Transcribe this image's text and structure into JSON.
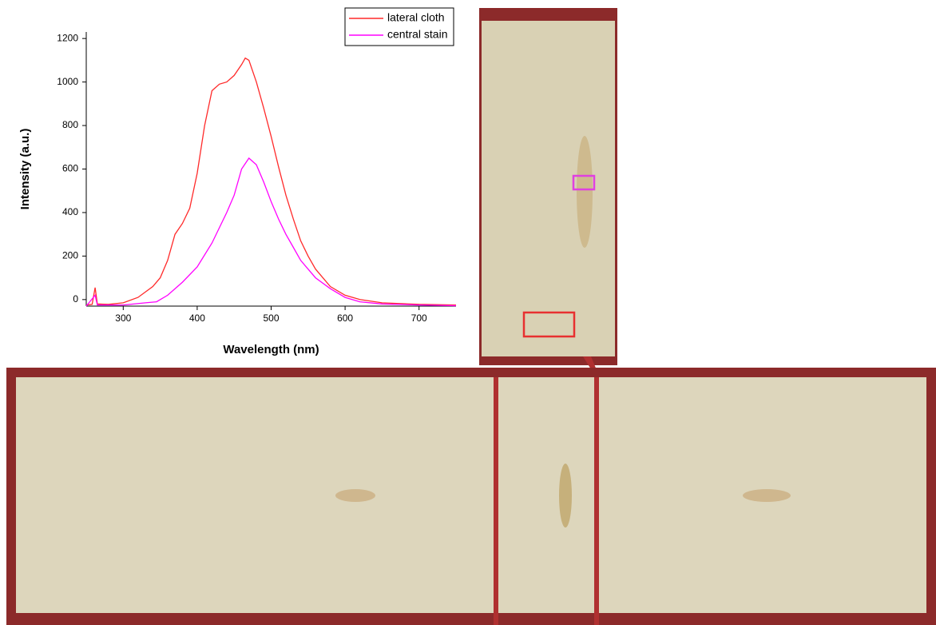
{
  "chart_data": {
    "type": "line",
    "xlabel": "Wavelength (nm)",
    "ylabel": "Intensity (a.u.)",
    "xlim": [
      250,
      750
    ],
    "ylim": [
      -30,
      1230
    ],
    "xticks": [
      300,
      400,
      500,
      600,
      700
    ],
    "yticks": [
      0,
      200,
      400,
      600,
      800,
      1000,
      1200
    ],
    "legend": "upper right",
    "series": [
      {
        "name": "lateral cloth",
        "color": "#ff2a2a",
        "x": [
          250,
          258,
          262,
          265,
          280,
          300,
          320,
          340,
          350,
          360,
          370,
          380,
          390,
          400,
          410,
          420,
          430,
          440,
          450,
          460,
          465,
          470,
          480,
          490,
          500,
          510,
          520,
          530,
          540,
          550,
          560,
          580,
          600,
          620,
          650,
          700,
          750
        ],
        "values": [
          -25,
          -22,
          55,
          -20,
          -22,
          -15,
          10,
          60,
          100,
          180,
          300,
          350,
          420,
          580,
          800,
          960,
          990,
          1000,
          1030,
          1080,
          1110,
          1100,
          1000,
          880,
          750,
          610,
          480,
          370,
          270,
          200,
          140,
          60,
          20,
          0,
          -15,
          -22,
          -25
        ]
      },
      {
        "name": "central stain",
        "color": "#ff00ff",
        "x": [
          250,
          262,
          265,
          300,
          330,
          345,
          360,
          380,
          400,
          420,
          440,
          450,
          460,
          470,
          480,
          490,
          500,
          510,
          520,
          530,
          540,
          560,
          580,
          600,
          620,
          650,
          700,
          750
        ],
        "values": [
          -30,
          20,
          -25,
          -25,
          -15,
          -10,
          20,
          80,
          150,
          260,
          400,
          480,
          600,
          650,
          620,
          540,
          450,
          370,
          300,
          240,
          180,
          100,
          50,
          10,
          -10,
          -20,
          -25,
          -28
        ]
      }
    ]
  }
}
